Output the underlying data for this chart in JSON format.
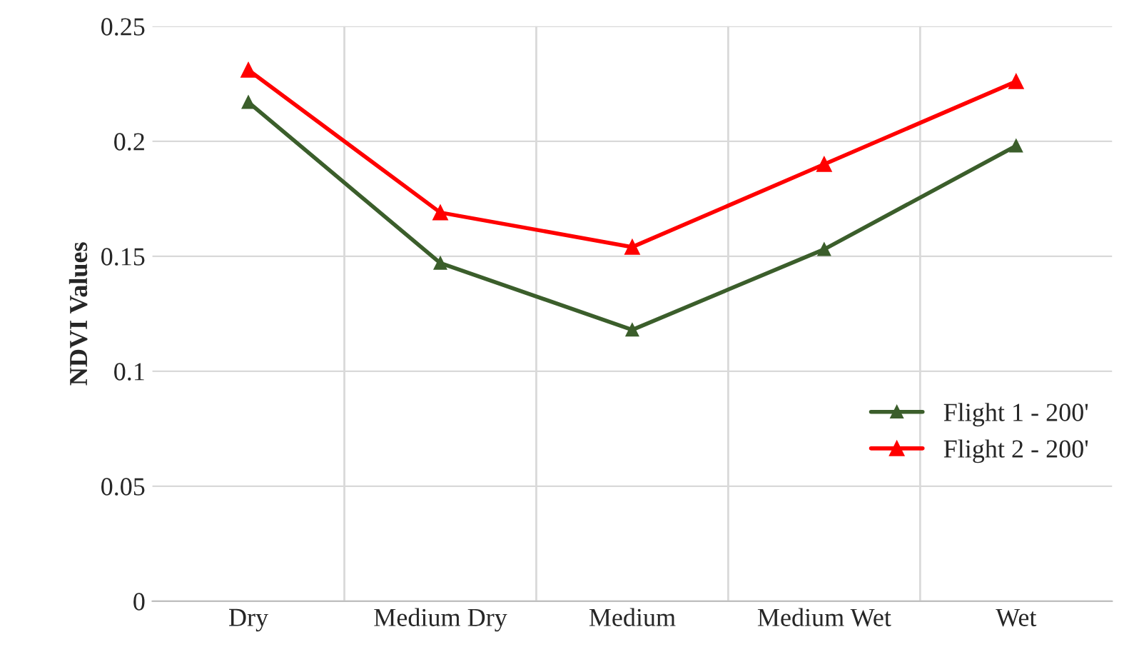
{
  "chart_data": {
    "type": "line",
    "ylabel": "NDVI Values",
    "categories": [
      "Dry",
      "Medium Dry",
      "Medium",
      "Medium Wet",
      "Wet"
    ],
    "series": [
      {
        "name": "Flight 1 - 200'",
        "color": "#3b5e2b",
        "values": [
          0.217,
          0.147,
          0.118,
          0.153,
          0.198
        ],
        "marker": "triangle"
      },
      {
        "name": "Flight 2 - 200'",
        "color": "#ff0000",
        "values": [
          0.231,
          0.169,
          0.154,
          0.19,
          0.226
        ],
        "marker": "triangle"
      }
    ],
    "ylim": [
      0,
      0.25
    ],
    "yticks": [
      0,
      0.05,
      0.1,
      0.15,
      0.2,
      0.25
    ],
    "grid": true,
    "legend": "lower right",
    "line_style": "solid"
  }
}
